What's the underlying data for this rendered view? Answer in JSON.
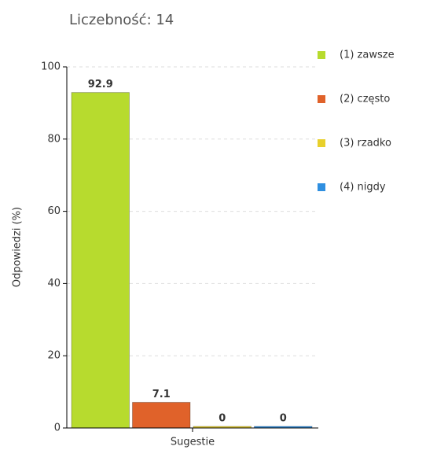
{
  "chart_data": {
    "type": "bar",
    "title": "Liczebność: 14",
    "y_label": "Odpowiedzi (%)",
    "categories": [
      "Sugestie"
    ],
    "series": [
      {
        "name": "(1) zawsze",
        "color": "#b7db2e",
        "values": [
          92.9
        ]
      },
      {
        "name": "(2) często",
        "color": "#e0622a",
        "values": [
          7.1
        ]
      },
      {
        "name": "(3) rzadko",
        "color": "#e8d02c",
        "values": [
          0
        ]
      },
      {
        "name": "(4) nigdy",
        "color": "#2f8fe0",
        "values": [
          0
        ]
      }
    ],
    "ylim": [
      0,
      100
    ],
    "yticks": [
      0,
      20,
      40,
      60,
      80,
      100
    ],
    "grid": true,
    "legend": "right"
  }
}
